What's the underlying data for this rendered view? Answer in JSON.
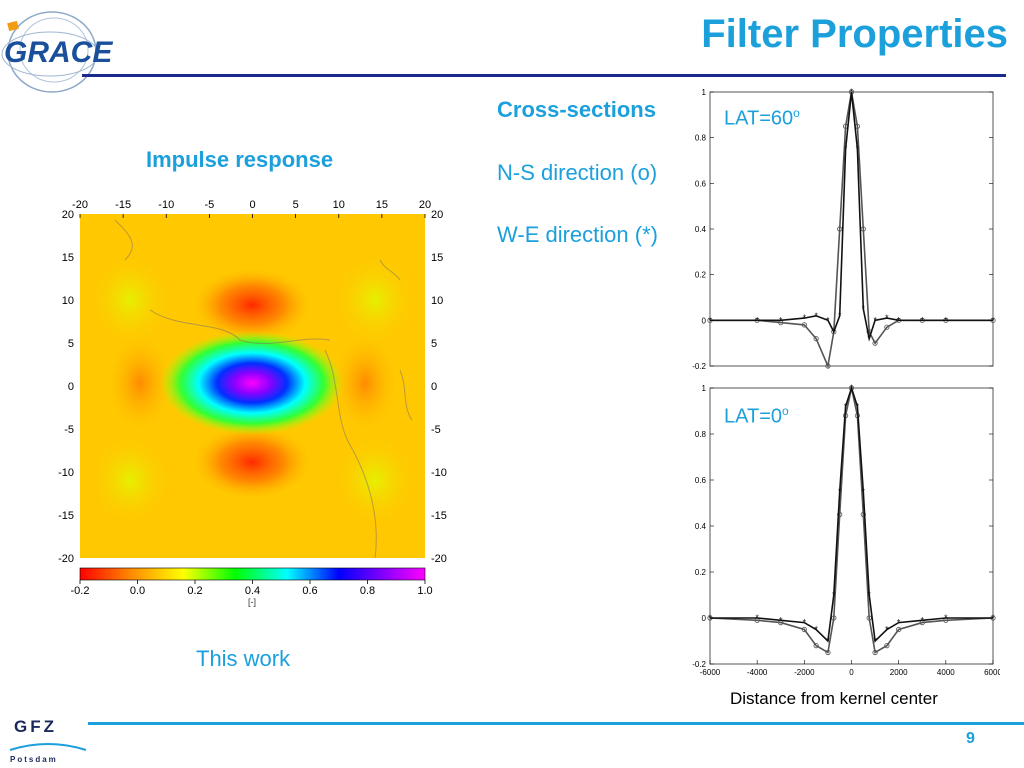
{
  "header": {
    "logo_text": "GRACE",
    "title": "Filter Properties"
  },
  "left_panel": {
    "heading": "Impulse response",
    "map_ticks": [
      "-20",
      "-15",
      "-10",
      "-5",
      "0",
      "5",
      "10",
      "15",
      "20"
    ],
    "colorbar_ticks": [
      "-0.2",
      "0.0",
      "0.2",
      "0.4",
      "0.6",
      "0.8",
      "1.0"
    ],
    "colorbar_unit": "[-]",
    "colormap": [
      "#ff0000",
      "#ff8c00",
      "#ffff00",
      "#00ff00",
      "#00ffff",
      "#0000ff",
      "#ff00ff"
    ],
    "caption": "This work"
  },
  "right_panel": {
    "heading": "Cross-sections",
    "line1": "N-S direction (o)",
    "line2": "W-E direction (*)",
    "plot_top_label_main": "LAT=60",
    "plot_top_label_sup": "o",
    "plot_bottom_label_main": "LAT=0",
    "plot_bottom_label_sup": "o",
    "xlabel": "Distance from kernel center"
  },
  "footer": {
    "org": "GFZ",
    "org_sub": "Potsdam",
    "page": "9"
  },
  "chart_data": [
    {
      "type": "heatmap",
      "title": "",
      "x_ticks": [
        -20,
        -15,
        -10,
        -5,
        0,
        5,
        10,
        15,
        20
      ],
      "y_ticks": [
        20,
        15,
        10,
        5,
        0,
        -5,
        -10,
        -15,
        -20
      ],
      "xlim": [
        -20,
        20
      ],
      "ylim": [
        -20,
        20
      ],
      "colorbar": {
        "min": -0.2,
        "max": 1.0,
        "ticks": [
          -0.2,
          0.0,
          0.2,
          0.4,
          0.6,
          0.8,
          1.0
        ]
      }
    },
    {
      "type": "line",
      "xlim": [
        -6000,
        6000
      ],
      "ylim": [
        -0.2,
        1
      ],
      "y_ticks": [
        1,
        0.8,
        0.6,
        0.4,
        0.2,
        0,
        -0.2
      ],
      "x": [
        -6000,
        -4000,
        -3000,
        -2000,
        -1500,
        -1000,
        -750,
        -500,
        -250,
        0,
        250,
        500,
        750,
        1000,
        1500,
        2000,
        3000,
        4000,
        6000
      ],
      "series": [
        {
          "name": "N-S direction (o)",
          "marker": "o",
          "values": [
            0,
            0,
            -0.01,
            -0.02,
            -0.08,
            -0.2,
            -0.05,
            0.4,
            0.85,
            1,
            0.85,
            0.4,
            -0.05,
            -0.1,
            -0.03,
            0,
            0,
            0,
            0
          ]
        },
        {
          "name": "W-E direction (*)",
          "marker": "*",
          "values": [
            0,
            0,
            0,
            0.01,
            0.02,
            0,
            -0.05,
            0.02,
            0.75,
            1,
            0.75,
            0.05,
            -0.08,
            0,
            0.01,
            0,
            0,
            0,
            0
          ]
        }
      ]
    },
    {
      "type": "line",
      "xlim": [
        -6000,
        6000
      ],
      "ylim": [
        -0.2,
        1
      ],
      "x_ticks": [
        -6000,
        -4000,
        -2000,
        0,
        2000,
        4000,
        6000
      ],
      "y_ticks": [
        1,
        0.8,
        0.6,
        0.4,
        0.2,
        0,
        -0.2
      ],
      "x": [
        -6000,
        -4000,
        -3000,
        -2000,
        -1500,
        -1000,
        -750,
        -500,
        -250,
        0,
        250,
        500,
        750,
        1000,
        1500,
        2000,
        3000,
        4000,
        6000
      ],
      "series": [
        {
          "name": "N-S direction (o)",
          "marker": "o",
          "values": [
            0,
            -0.01,
            -0.02,
            -0.05,
            -0.12,
            -0.15,
            0.0,
            0.45,
            0.88,
            1,
            0.88,
            0.45,
            0.0,
            -0.15,
            -0.12,
            -0.05,
            -0.02,
            -0.01,
            0
          ]
        },
        {
          "name": "W-E direction (*)",
          "marker": "*",
          "values": [
            0,
            0,
            -0.01,
            -0.02,
            -0.05,
            -0.1,
            0.1,
            0.55,
            0.92,
            1,
            0.92,
            0.55,
            0.1,
            -0.1,
            -0.05,
            -0.02,
            -0.01,
            0,
            0
          ]
        }
      ]
    }
  ]
}
